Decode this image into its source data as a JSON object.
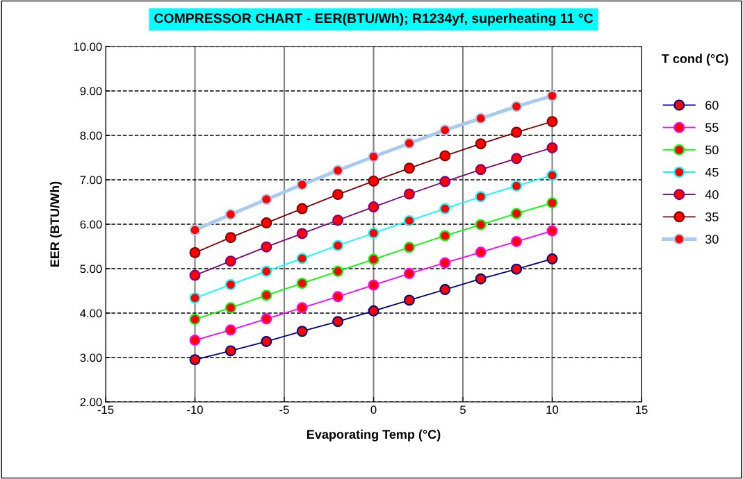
{
  "chart_data": {
    "type": "line",
    "title": "COMPRESSOR CHART - EER(BTU/Wh); R1234yf, superheating 11 °C",
    "xlabel": "Evaporating Temp (°C)",
    "ylabel": "EER (BTU/Wh)",
    "legend_title": "T cond (°C)",
    "legend": "right",
    "grid": true,
    "marker": "circle",
    "line_style": "solid",
    "x": [
      -10,
      -8,
      -6,
      -4,
      -2,
      0,
      2,
      4,
      6,
      8,
      10
    ],
    "xlim": [
      -15,
      15
    ],
    "xticks": [
      -15,
      -10,
      -5,
      0,
      5,
      10,
      15
    ],
    "ylim": [
      2,
      10
    ],
    "yticks": [
      {
        "value": 2,
        "label": "2.00"
      },
      {
        "value": 3,
        "label": "3.00"
      },
      {
        "value": 4,
        "label": "4.00"
      },
      {
        "value": 5,
        "label": "5.00"
      },
      {
        "value": 6,
        "label": "6.00"
      },
      {
        "value": 7,
        "label": "7.00"
      },
      {
        "value": 8,
        "label": "8.00"
      },
      {
        "value": 9,
        "label": "9.00"
      },
      {
        "value": 10,
        "label": "10.00"
      }
    ],
    "series": [
      {
        "name": "60",
        "color": "#000080",
        "values": [
          2.95,
          3.15,
          3.36,
          3.59,
          3.81,
          4.05,
          4.29,
          4.53,
          4.77,
          4.99,
          5.22
        ]
      },
      {
        "name": "55",
        "color": "#ff00ff",
        "values": [
          3.39,
          3.62,
          3.87,
          4.12,
          4.37,
          4.63,
          4.89,
          5.13,
          5.37,
          5.61,
          5.85
        ]
      },
      {
        "name": "50",
        "color": "#00ff00",
        "values": [
          3.86,
          4.12,
          4.4,
          4.67,
          4.94,
          5.21,
          5.48,
          5.74,
          5.99,
          6.24,
          6.48
        ]
      },
      {
        "name": "45",
        "color": "#00ffff",
        "values": [
          4.34,
          4.64,
          4.94,
          5.23,
          5.52,
          5.8,
          6.08,
          6.35,
          6.62,
          6.86,
          7.1
        ]
      },
      {
        "name": "40",
        "color": "#800080",
        "values": [
          4.85,
          5.17,
          5.49,
          5.79,
          6.09,
          6.39,
          6.68,
          6.96,
          7.23,
          7.48,
          7.72
        ]
      },
      {
        "name": "35",
        "color": "#800000",
        "values": [
          5.36,
          5.7,
          6.03,
          6.35,
          6.67,
          6.97,
          7.26,
          7.54,
          7.81,
          8.07,
          8.31
        ]
      },
      {
        "name": "30",
        "color": "#a6caf0",
        "values": [
          5.87,
          6.22,
          6.56,
          6.89,
          7.21,
          7.52,
          7.82,
          8.12,
          8.38,
          8.65,
          8.89
        ]
      }
    ]
  }
}
